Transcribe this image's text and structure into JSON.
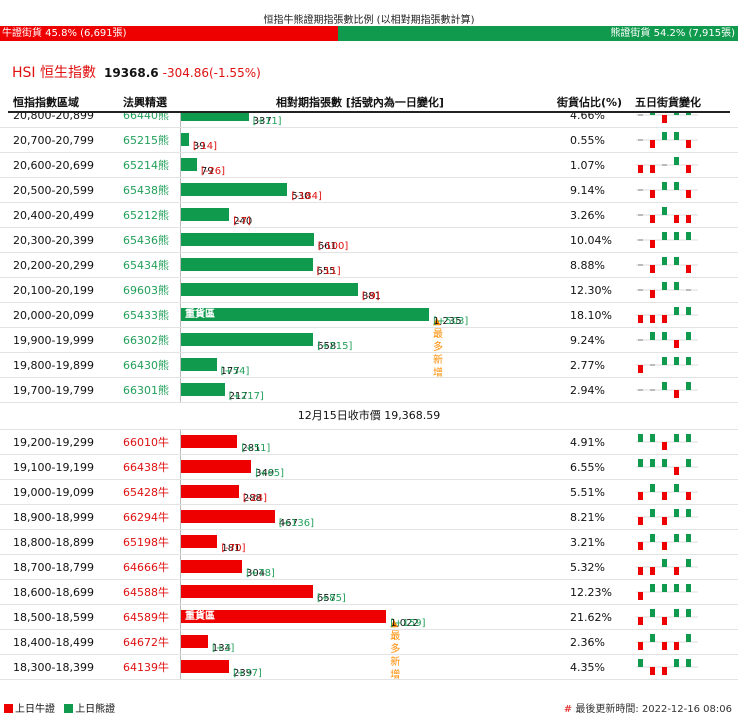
{
  "header": {
    "title": "恒指牛熊證期指張數比例 (以相對期指張數計算)",
    "bull_label": "牛證街貨 45.8% (6,691張)",
    "bear_label": "熊證街貨 54.2% (7,915張)",
    "bull_pct": 45.8,
    "bear_pct": 54.2
  },
  "index": {
    "name": "HSI 恒生指數",
    "value": "19368.6",
    "change": "-304.86(-1.55%)"
  },
  "columns": {
    "range": "恒指指數區域",
    "code": "法興精選",
    "count": "相對期指張數 [括號內為一日變化]",
    "pct": "街貨佔比(%)",
    "spark": "五日街貨變化"
  },
  "bear_rows": [
    {
      "range": "20,800-20,899",
      "code": "66440熊",
      "count": 337,
      "count_text": "337",
      "change": "[+11]",
      "pct": "4.66%",
      "spark": [
        0,
        1,
        -1,
        1,
        1
      ]
    },
    {
      "range": "20,700-20,799",
      "code": "65215熊",
      "count": 39,
      "count_text": "39",
      "change": "[-14]",
      "pct": "0.55%",
      "spark": [
        0,
        -1,
        1,
        1,
        -1
      ]
    },
    {
      "range": "20,600-20,699",
      "code": "65214熊",
      "count": 79,
      "count_text": "79",
      "change": "[-26]",
      "pct": "1.07%",
      "spark": [
        -1,
        -1,
        0,
        1,
        -1
      ]
    },
    {
      "range": "20,500-20,599",
      "code": "65438熊",
      "count": 530,
      "count_text": "530",
      "change": "[-184]",
      "pct": "9.14%",
      "spark": [
        0,
        -1,
        1,
        1,
        -1
      ]
    },
    {
      "range": "20,400-20,499",
      "code": "65212熊",
      "count": 240,
      "count_text": "240",
      "change": "[-7]",
      "pct": "3.26%",
      "spark": [
        0,
        -1,
        1,
        -1,
        -1
      ]
    },
    {
      "range": "20,300-20,399",
      "code": "65436熊",
      "count": 661,
      "count_text": "661",
      "change": "[-100]",
      "pct": "10.04%",
      "spark": [
        0,
        -1,
        1,
        1,
        1
      ]
    },
    {
      "range": "20,200-20,299",
      "code": "65434熊",
      "count": 655,
      "count_text": "655",
      "change": "[-11]",
      "pct": "8.88%",
      "spark": [
        0,
        -1,
        1,
        1,
        -1
      ]
    },
    {
      "range": "20,100-20,199",
      "code": "69603熊",
      "count": 881,
      "count_text": "881",
      "change": "[-9]",
      "pct": "12.30%",
      "spark": [
        0,
        -1,
        1,
        1,
        0
      ]
    },
    {
      "range": "20,000-20,099",
      "code": "65433熊",
      "count": 1235,
      "count_text": "1,235",
      "change": "[+503]",
      "pct": "18.10%",
      "spark": [
        -1,
        -1,
        -1,
        1,
        1
      ],
      "heavy": true
    },
    {
      "range": "19,900-19,999",
      "code": "66302熊",
      "count": 658,
      "count_text": "658",
      "change": "[+215]",
      "pct": "9.24%",
      "spark": [
        0,
        1,
        1,
        -1,
        1
      ]
    },
    {
      "range": "19,800-19,899",
      "code": "66430熊",
      "count": 177,
      "count_text": "177",
      "change": "[+54]",
      "pct": "2.77%",
      "spark": [
        -1,
        0,
        1,
        1,
        1
      ]
    },
    {
      "range": "19,700-19,799",
      "code": "66301熊",
      "count": 217,
      "count_text": "217",
      "change": "[+217]",
      "pct": "2.94%",
      "spark": [
        0,
        0,
        1,
        -1,
        1
      ]
    }
  ],
  "close_label": "12月15日收市價 19,368.59",
  "bull_rows": [
    {
      "range": "19,200-19,299",
      "code": "66010牛",
      "count": 281,
      "count_text": "281",
      "change": "[+51]",
      "pct": "4.91%",
      "spark": [
        1,
        1,
        -1,
        1,
        1
      ]
    },
    {
      "range": "19,100-19,199",
      "code": "66438牛",
      "count": 349,
      "count_text": "349",
      "change": "[+65]",
      "pct": "6.55%",
      "spark": [
        1,
        1,
        1,
        -1,
        1
      ]
    },
    {
      "range": "19,000-19,099",
      "code": "65428牛",
      "count": 288,
      "count_text": "288",
      "change": "[-24]",
      "pct": "5.51%",
      "spark": [
        -1,
        1,
        -1,
        1,
        -1
      ]
    },
    {
      "range": "18,900-18,999",
      "code": "66294牛",
      "count": 467,
      "count_text": "467",
      "change": "[+136]",
      "pct": "8.21%",
      "spark": [
        -1,
        1,
        -1,
        1,
        1
      ]
    },
    {
      "range": "18,800-18,899",
      "code": "65198牛",
      "count": 181,
      "count_text": "181",
      "change": "[-70]",
      "pct": "3.21%",
      "spark": [
        -1,
        1,
        -1,
        1,
        1
      ]
    },
    {
      "range": "18,700-18,799",
      "code": "64666牛",
      "count": 304,
      "count_text": "304",
      "change": "[+78]",
      "pct": "5.32%",
      "spark": [
        -1,
        -1,
        1,
        -1,
        1
      ]
    },
    {
      "range": "18,600-18,699",
      "code": "64588牛",
      "count": 657,
      "count_text": "657",
      "change": "[+85]",
      "pct": "12.23%",
      "spark": [
        -1,
        1,
        1,
        1,
        1
      ]
    },
    {
      "range": "18,500-18,599",
      "code": "64589牛",
      "count": 1022,
      "count_text": "1,022",
      "change": "[+159]",
      "pct": "21.62%",
      "spark": [
        -1,
        1,
        -1,
        1,
        1
      ],
      "heavy": true
    },
    {
      "range": "18,400-18,499",
      "code": "64672牛",
      "count": 134,
      "count_text": "134",
      "change": "[+3]",
      "pct": "2.36%",
      "spark": [
        -1,
        1,
        -1,
        -1,
        1
      ]
    },
    {
      "range": "18,300-18,399",
      "code": "64139牛",
      "count": 239,
      "count_text": "239",
      "change": "[+37]",
      "pct": "4.35%",
      "spark": [
        1,
        -1,
        -1,
        1,
        1
      ]
    }
  ],
  "heavy_label": "重貨區",
  "most_added_label": "▲最多新增",
  "legend": {
    "bull": "上日牛證",
    "bear": "上日熊證"
  },
  "footer": {
    "hash": "#",
    "updated": "最後更新時間: 2022-12-16 08:06"
  },
  "colors": {
    "bull": "#ee0000",
    "bear": "#109a4d",
    "most": "#ff8c00"
  }
}
